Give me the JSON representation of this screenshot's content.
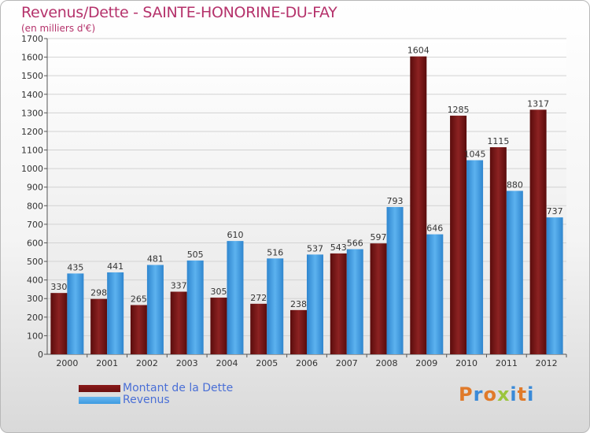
{
  "title": "Revenus/Dette - SAINTE-HONORINE-DU-FAY",
  "subtitle": "(en milliers d'€)",
  "logo": {
    "text": "Proxiti",
    "colors": [
      "#e07a2a",
      "#3a8ad8",
      "#e07a2a",
      "#9bc53d",
      "#3a8ad8",
      "#e07a2a",
      "#3a8ad8"
    ]
  },
  "chart_data": {
    "type": "bar",
    "categories": [
      "2000",
      "2001",
      "2002",
      "2003",
      "2004",
      "2005",
      "2006",
      "2007",
      "2008",
      "2009",
      "2010",
      "2011",
      "2012"
    ],
    "series": [
      {
        "name": "Montant de la Dette",
        "color": "#6b1010",
        "values": [
          330,
          298,
          265,
          337,
          305,
          272,
          238,
          543,
          597,
          1604,
          1285,
          1115,
          1317
        ]
      },
      {
        "name": "Revenus",
        "color": "#3d9ae0",
        "values": [
          435,
          441,
          481,
          505,
          610,
          516,
          537,
          566,
          793,
          646,
          1045,
          880,
          737
        ]
      }
    ],
    "ylim": [
      0,
      1700
    ],
    "yticks": [
      "0",
      "100",
      "200",
      "300",
      "400",
      "500",
      "600",
      "700",
      "800",
      "900",
      "1000",
      "1100",
      "1200",
      "1300",
      "1400",
      "1500",
      "1600",
      "1700"
    ],
    "grid": true,
    "legend": "bottom-left"
  }
}
